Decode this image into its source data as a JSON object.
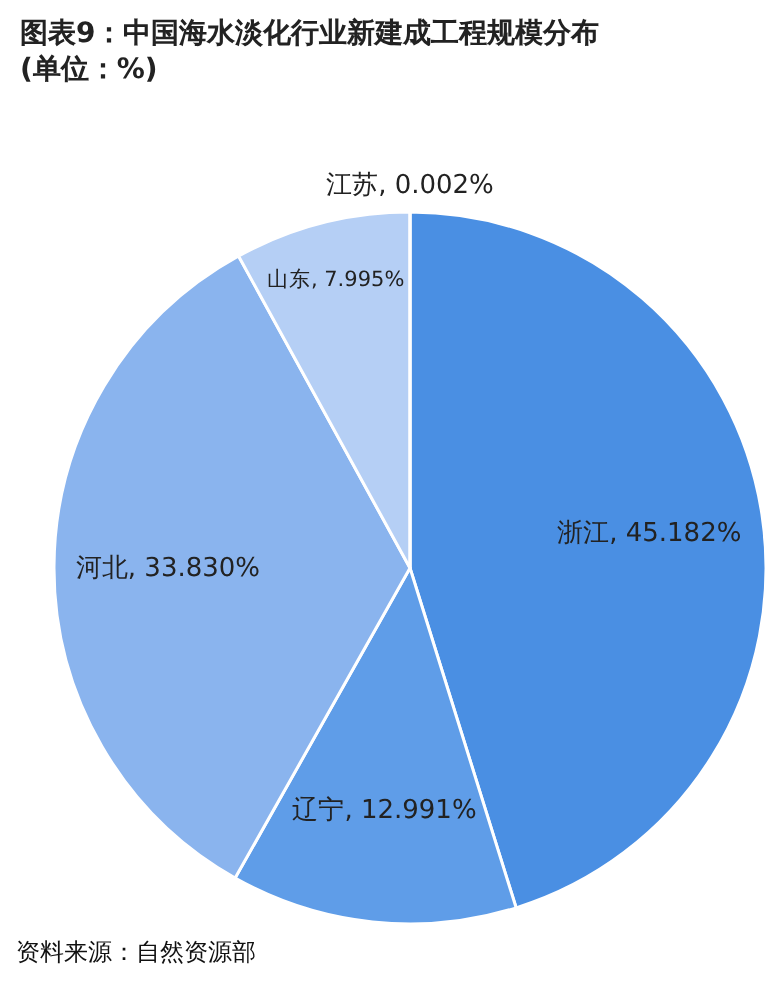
{
  "chart_data": {
    "type": "pie",
    "title": "图表9：中国海水淡化行业新建成工程规模分布(单位：%)",
    "categories": [
      "浙江",
      "辽宁",
      "河北",
      "山东",
      "江苏"
    ],
    "values": [
      45.182,
      12.991,
      33.83,
      7.995,
      0.002
    ],
    "value_labels": [
      "45.182%",
      "12.991%",
      "33.830%",
      "7.995%",
      "0.002%"
    ],
    "colors": [
      "#4a8fe3",
      "#5f9de8",
      "#8ab4ee",
      "#b5cff5",
      "#dbe7fa"
    ],
    "annotations": [
      "资料来源：自然资源部"
    ]
  }
}
